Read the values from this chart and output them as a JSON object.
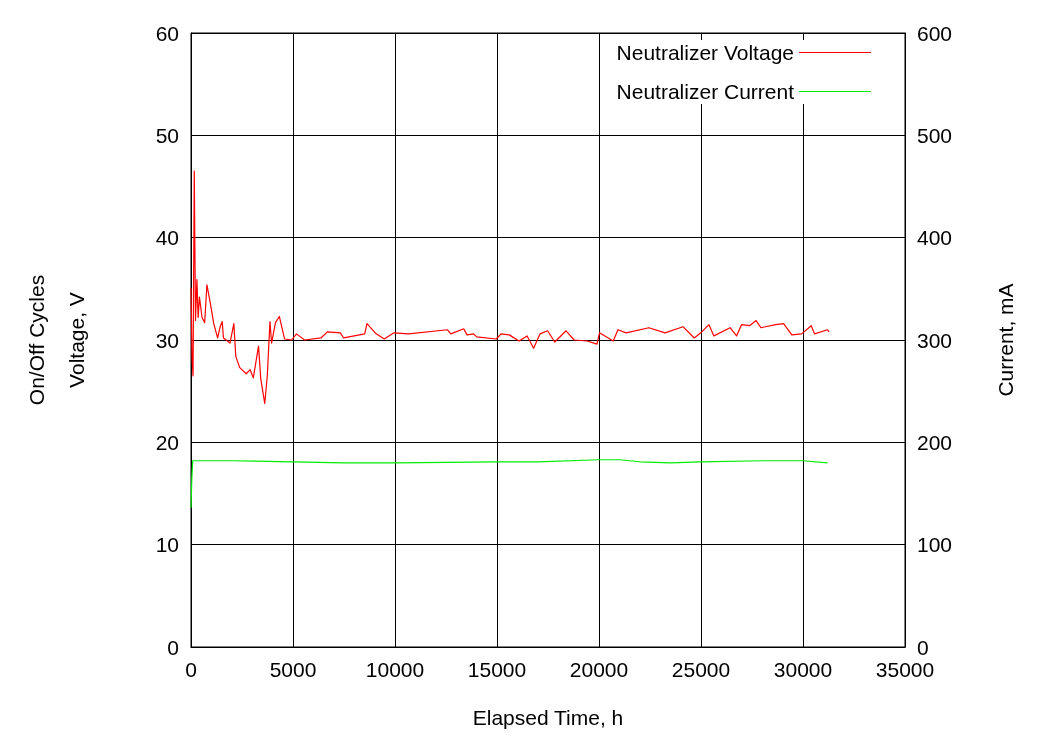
{
  "chart_data": {
    "type": "line",
    "xlabel": "Elapsed Time, h",
    "ylabel": "On/Off Cycles\nVoltage, V",
    "y2label": "Current, mA",
    "xlim": [
      0,
      35000
    ],
    "xticks": [
      0,
      5000,
      10000,
      15000,
      20000,
      25000,
      30000,
      35000
    ],
    "ylim": [
      0,
      60
    ],
    "yticks": [
      0,
      10,
      20,
      30,
      40,
      50,
      60
    ],
    "y2lim": [
      0,
      600
    ],
    "y2ticks": [
      0,
      100,
      200,
      300,
      400,
      500,
      600
    ],
    "grid": true,
    "legend": "top right",
    "marker": "none",
    "line_style": "solid",
    "series": [
      {
        "name": "Neutralizer Voltage",
        "color": "#ff0000",
        "x": [
          0,
          50,
          100,
          160,
          220,
          290,
          350,
          415,
          540,
          670,
          780,
          955,
          1115,
          1305,
          1430,
          1530,
          1590,
          1910,
          2100,
          2195,
          2390,
          2705,
          2900,
          3055,
          3310,
          3420,
          3615,
          3740,
          3870,
          3950,
          4140,
          4330,
          4585,
          4935,
          5170,
          5570,
          6370,
          6685,
          7320,
          7480,
          8515,
          8625,
          9075,
          9470,
          9950,
          10665,
          12575,
          12735,
          13370,
          13530,
          13850,
          14005,
          14960,
          15200,
          15600,
          16080,
          16475,
          16795,
          17110,
          17480,
          17830,
          18385,
          18785,
          19420,
          19900,
          20025,
          20695,
          20930,
          21330,
          22445,
          23240,
          24115,
          24670,
          24990,
          25390,
          25630,
          26425,
          26745,
          26985,
          27380,
          27700,
          27940,
          28655,
          29050,
          29450,
          29930,
          30405,
          30565,
          31200,
          31280
        ],
        "values": [
          35.1,
          28.4,
          26.5,
          46.5,
          31.9,
          35.9,
          32.2,
          34.2,
          32.2,
          31.7,
          35.4,
          33.5,
          31.6,
          30.2,
          31.3,
          31.8,
          30.2,
          29.7,
          31.6,
          28.4,
          27.3,
          26.7,
          27.1,
          26.3,
          29.4,
          26.2,
          23.8,
          26.5,
          31.8,
          29.7,
          31.7,
          32.3,
          30.1,
          30.0,
          30.6,
          30.0,
          30.2,
          30.8,
          30.7,
          30.2,
          30.6,
          31.6,
          30.6,
          30.1,
          30.7,
          30.6,
          31.0,
          30.6,
          31.1,
          30.5,
          30.6,
          30.3,
          30.1,
          30.6,
          30.5,
          29.9,
          30.4,
          29.2,
          30.6,
          30.9,
          29.8,
          30.9,
          30.0,
          29.9,
          29.6,
          30.7,
          29.9,
          31.0,
          30.7,
          31.2,
          30.7,
          31.3,
          30.2,
          30.7,
          31.5,
          30.4,
          31.2,
          30.4,
          31.5,
          31.4,
          31.9,
          31.2,
          31.5,
          31.6,
          30.5,
          30.6,
          31.4,
          30.6,
          31.0,
          30.8
        ]
      },
      {
        "name": "Neutralizer Current",
        "color": "#00ee00",
        "axis": "y2",
        "x": [
          0,
          40,
          85,
          2000,
          5000,
          7500,
          10000,
          15000,
          17000,
          20000,
          21000,
          22000,
          23500,
          25000,
          28000,
          30000,
          31200
        ],
        "values": [
          136,
          165,
          182,
          182,
          181,
          180,
          180,
          181,
          181,
          183,
          183,
          181,
          180,
          181,
          182,
          182,
          180
        ]
      }
    ]
  }
}
